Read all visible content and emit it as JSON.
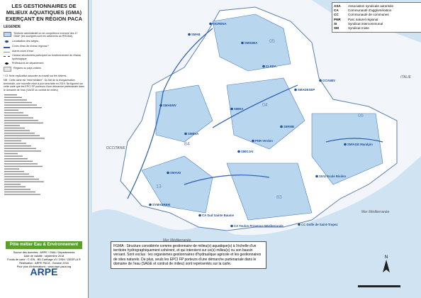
{
  "header": {
    "title": "LES GESTIONNAIRES DE MILIEUX AQUATIQUES (GMA) EXERÇANT EN RÉGION PACA"
  },
  "legend": {
    "title": "LEGENDE",
    "items": [
      "Territoire administratif ou de compétence exercée des 47 GMA* (les soulignés sont les adhérents au RRGMA)",
      "Localisation des sièges",
      "Cours d'eau de niveau régional *",
      "Autres cours d'eau",
      "Canaux structurants participant au fonctionnement du réseau hydrologique",
      "Préfectures de département",
      "Régions ou pays voisins"
    ],
    "notes": [
      "* Cf. fiche explicative associée au travail sur les rivières.",
      "NB : Cette carte est \"intermédiaire\". Du fait de la réorganisation territoriale, une nouvelle mise à jour sera faite en 2019. Ne figurent sur cette carte que les EPCI FP porteurs d'une démarche partenariale dans le domaine de l'eau (SAGE ou contrat de milieu)"
    ]
  },
  "abbreviations": [
    [
      "ASA",
      "Association syndicale autorisée"
    ],
    [
      "CA",
      "Communauté d'agglomération"
    ],
    [
      "CC",
      "Communauté de communes"
    ],
    [
      "PNR",
      "Parc naturel régional"
    ],
    [
      "SI",
      "Syndicat intercommunal"
    ],
    [
      "SM",
      "Syndicat mixte"
    ]
  ],
  "map": {
    "labels": [
      "SIGRENA",
      "SMIGIBA",
      "SMAB",
      "CLEDA",
      "SMADESEP",
      "CCVUBV",
      "SMAVD",
      "SYMADREM",
      "SMIAGE Maralpin",
      "SIVU Ecole Rivière",
      "SIBOJAI",
      "CA Toulon Provence Méditerranée",
      "CA Sud Sainte Baume",
      "CC Golfe de Saint-Tropez",
      "PNR Verdon",
      "SMBVA",
      "SIBRA",
      "SMAEMV",
      "SIIRMB"
    ],
    "regions": [
      "OCCITANIE",
      "ITALIE",
      "Mer Méditerranée",
      "Mer Méditerranée"
    ],
    "departments": [
      "05",
      "04",
      "06",
      "84",
      "13",
      "83"
    ]
  },
  "note_box": "FGMA : Structure considérée comme gestionnaire de milieu(x) aquatique(s) à l'échelle d'un territoire hydrographiquement cohérent, et qui intervient sur ce(s) milieu(x) ou son bassin versant. Sont exclus : les organismes gestionnaires d'hydraulique agricole et les gestionnaires de sites naturels. De plus, seuls les EPCI FP porteurs d'une démarche partenariale dans le domaine de l'eau (SAGE et contrat de milieu) sont représentés sur la carte.",
  "footer": {
    "logo": "Pôle métier Eau & Environnement",
    "source": [
      "Source des données : ARPE / GMA / Départements",
      "Date de validité : septembre 2018",
      "Fonds de carte : © IGN - BD Carthage v3 / OSM / GEOFLA ®",
      "Réalisation : ARPE PACA - Octobre 2018",
      "Pour plus d'informations : www.arpe-paca.org"
    ],
    "arpe": "ARPE"
  }
}
